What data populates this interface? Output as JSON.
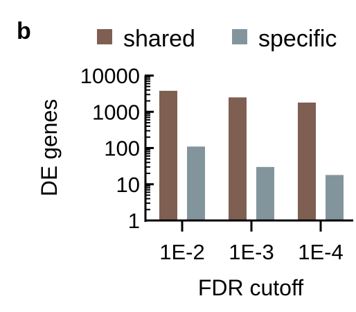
{
  "panel_label": "b",
  "chart_data": {
    "type": "bar",
    "categories": [
      "1E-2",
      "1E-3",
      "1E-4"
    ],
    "series": [
      {
        "name": "shared",
        "values": [
          3800,
          2500,
          1800
        ],
        "color": "#7f5f52"
      },
      {
        "name": "specific",
        "values": [
          110,
          30,
          18
        ],
        "color": "#83959c"
      }
    ],
    "xlabel": "FDR cutoff",
    "ylabel": "DE genes",
    "yscale": "log",
    "ylim": [
      1,
      10000
    ],
    "yticks": [
      1,
      10,
      100,
      1000,
      10000
    ],
    "ytick_labels": [
      "1",
      "10",
      "100",
      "1000",
      "10000"
    ],
    "legend_position": "top",
    "grid": false
  }
}
